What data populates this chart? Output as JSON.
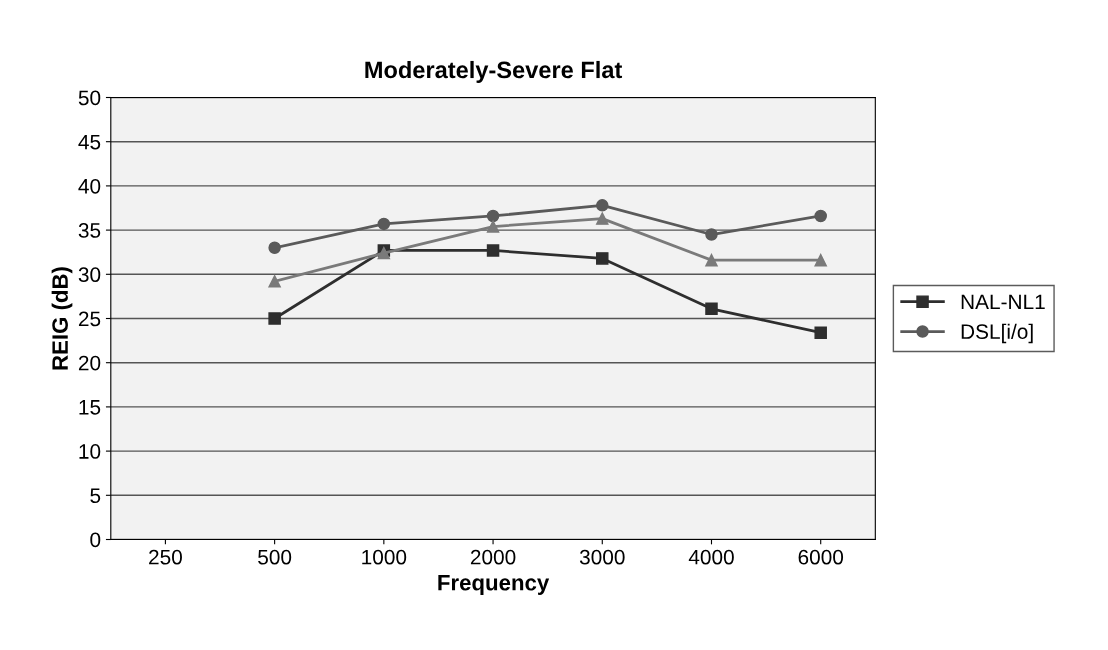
{
  "chart_data": {
    "type": "line",
    "title": "Moderately-Severe Flat",
    "xlabel": "Frequency",
    "ylabel": "REIG (dB)",
    "categories": [
      "250",
      "500",
      "1000",
      "2000",
      "3000",
      "4000",
      "6000"
    ],
    "series": [
      {
        "name": "NAL-NL1",
        "color": "#2e2e2e",
        "marker": "square",
        "values": [
          null,
          25,
          32.7,
          32.7,
          31.8,
          26.1,
          23.4
        ]
      },
      {
        "name": "DSL[i/o]",
        "color": "#5a5a5a",
        "marker": "circle",
        "values": [
          null,
          33,
          35.7,
          36.6,
          37.8,
          34.5,
          36.6
        ]
      },
      {
        "color": "#7a7a7a",
        "marker": "triangle",
        "values": [
          null,
          29.2,
          32.4,
          35.4,
          36.3,
          31.6,
          31.6
        ]
      }
    ],
    "ylim": [
      0,
      50
    ],
    "yticks": [
      0,
      5,
      10,
      15,
      20,
      25,
      30,
      35,
      40,
      45,
      50
    ],
    "grid": "y",
    "legend": "right"
  }
}
